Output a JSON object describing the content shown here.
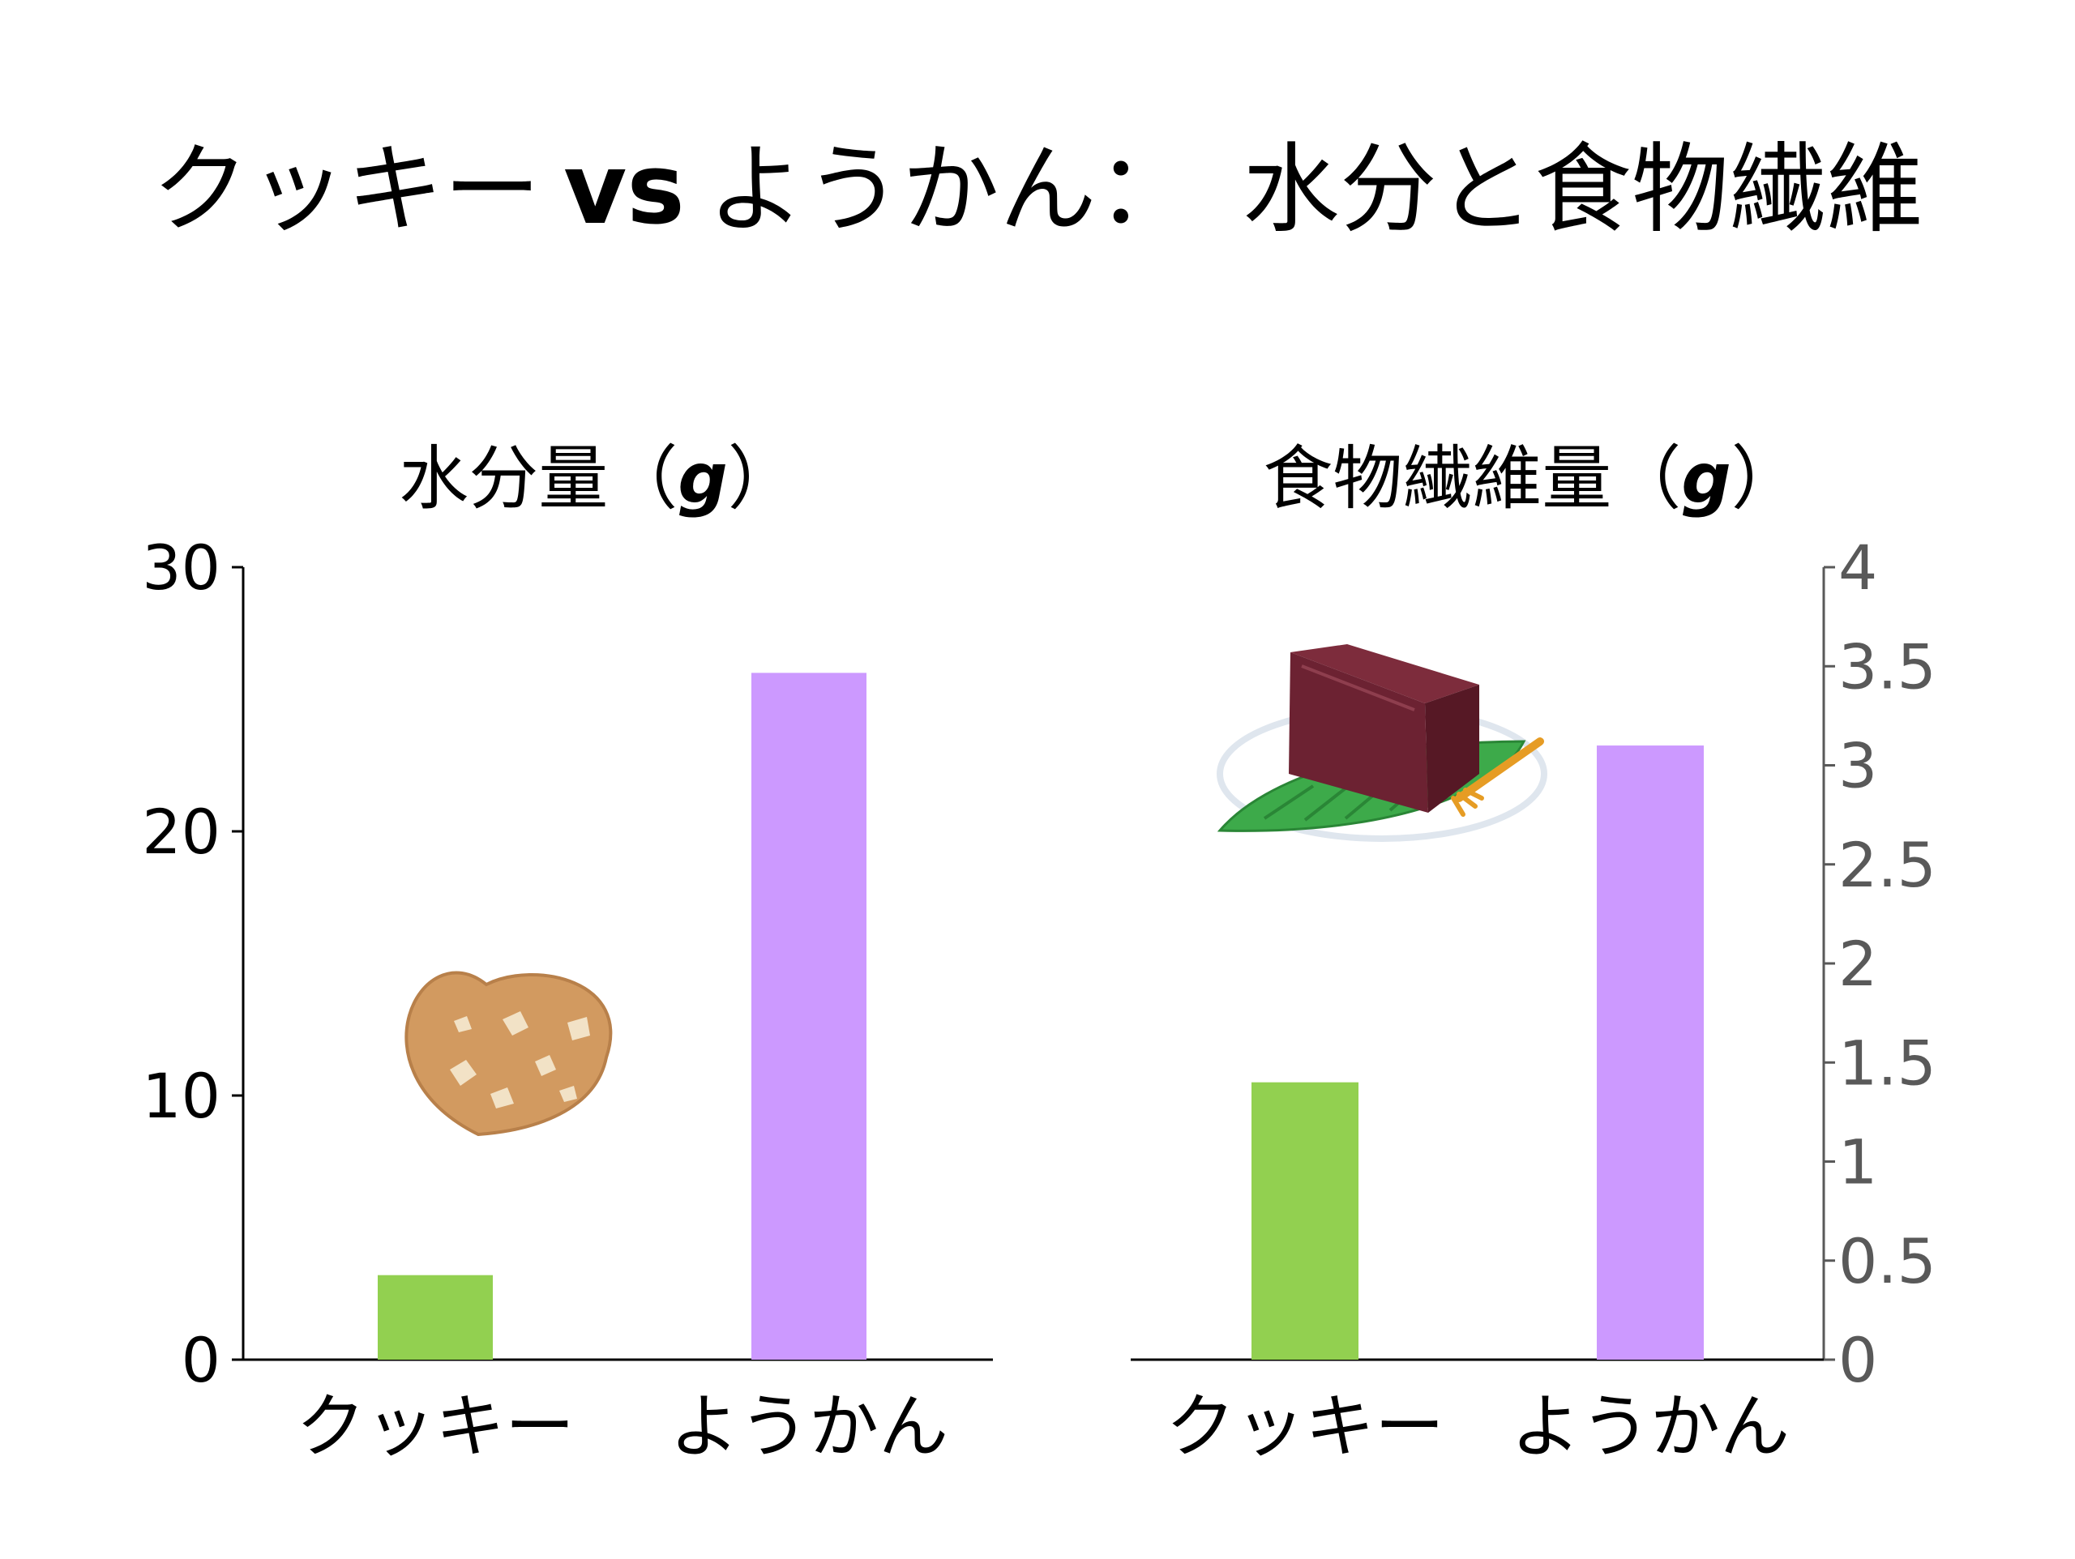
{
  "title": {
    "part1": "クッキー",
    "vs": "vs",
    "part2": "ようかん：　水分と食物繊維"
  },
  "colors": {
    "cookie_bar": "#92d050",
    "yokan_bar": "#cc99ff",
    "left_axis_text": "#000000",
    "right_axis_text": "#595959"
  },
  "icons": {
    "cookie": "heart-cookie-icon",
    "yokan": "yokan-on-plate-icon"
  },
  "chart_data": [
    {
      "type": "bar",
      "title_prefix": "水分量（",
      "unit_label": "g",
      "title_suffix": "）",
      "categories": [
        "クッキー",
        "ようかん"
      ],
      "values": [
        3.2,
        26
      ],
      "ylim": [
        0,
        30
      ],
      "yticks": [
        "0",
        "10",
        "20",
        "30"
      ],
      "axis_side": "left",
      "grid": false,
      "colors": [
        "#92d050",
        "#cc99ff"
      ]
    },
    {
      "type": "bar",
      "title_prefix": "食物繊維量（",
      "unit_label": "g",
      "title_suffix": "）",
      "categories": [
        "クッキー",
        "ようかん"
      ],
      "values": [
        1.4,
        3.1
      ],
      "ylim": [
        0,
        4
      ],
      "yticks": [
        "0",
        "0.5",
        "1",
        "1.5",
        "2",
        "2.5",
        "3",
        "3.5",
        "4"
      ],
      "axis_side": "right",
      "grid": false,
      "colors": [
        "#92d050",
        "#cc99ff"
      ]
    }
  ]
}
